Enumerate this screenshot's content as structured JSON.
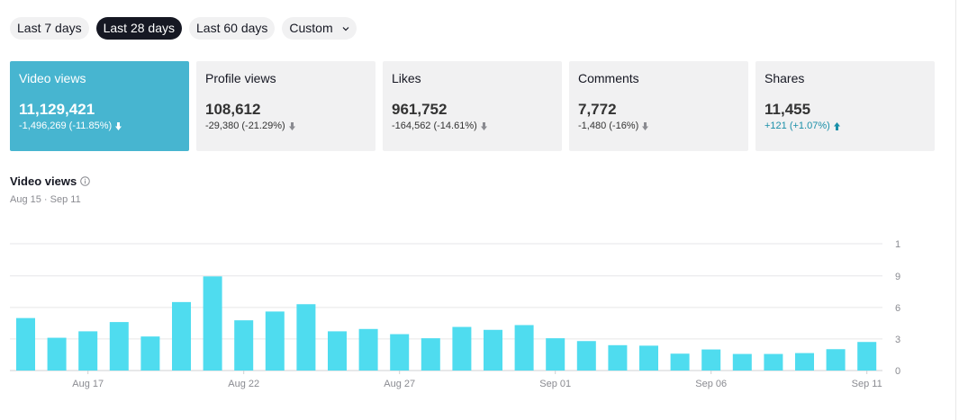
{
  "ranges": [
    {
      "label": "Last 7 days"
    },
    {
      "label": "Last 28 days"
    },
    {
      "label": "Last 60 days"
    },
    {
      "label": "Custom"
    }
  ],
  "cards": [
    {
      "title": "Video views",
      "value": "11,129,421",
      "delta": "-1,496,269 (-11.85%)",
      "trend": "down"
    },
    {
      "title": "Profile views",
      "value": "108,612",
      "delta": "-29,380 (-21.29%)",
      "trend": "down"
    },
    {
      "title": "Likes",
      "value": "961,752",
      "delta": "-164,562 (-14.61%)",
      "trend": "down"
    },
    {
      "title": "Comments",
      "value": "7,772",
      "delta": "-1,480 (-16%)",
      "trend": "down"
    },
    {
      "title": "Shares",
      "value": "11,455",
      "delta": "+121 (+1.07%)",
      "trend": "up"
    }
  ],
  "colors": {
    "accent": "#47b5d0",
    "bar": "#4fdcef",
    "dark": "#161823",
    "up": "#1a8fa8"
  },
  "chart_data": {
    "type": "bar",
    "title": "Video views",
    "subtitle": "Aug 15 · Sep 11",
    "categories": [
      "Aug 15",
      "Aug 16",
      "Aug 17",
      "Aug 18",
      "Aug 19",
      "Aug 20",
      "Aug 21",
      "Aug 22",
      "Aug 23",
      "Aug 24",
      "Aug 25",
      "Aug 26",
      "Aug 27",
      "Aug 28",
      "Aug 29",
      "Aug 30",
      "Aug 31",
      "Sep 01",
      "Sep 02",
      "Sep 03",
      "Sep 04",
      "Sep 05",
      "Sep 06",
      "Sep 07",
      "Sep 08",
      "Sep 09",
      "Sep 10",
      "Sep 11"
    ],
    "values": [
      538000,
      336000,
      402000,
      497000,
      349000,
      702000,
      965000,
      515000,
      605000,
      680000,
      402000,
      426000,
      373000,
      331000,
      447000,
      417000,
      466000,
      331000,
      302000,
      260000,
      255000,
      173000,
      216000,
      170000,
      170000,
      179000,
      219000,
      293000
    ],
    "ylim": [
      0,
      1300000
    ],
    "yticks": [
      {
        "value": 0,
        "label": "0"
      },
      {
        "value": 323300,
        "label": "323.3K"
      },
      {
        "value": 646700,
        "label": "646.7K"
      },
      {
        "value": 970000,
        "label": "970.0K"
      },
      {
        "value": 1300000,
        "label": "1.3M"
      }
    ],
    "xticks": [
      {
        "index": 2,
        "label": "Aug 17"
      },
      {
        "index": 7,
        "label": "Aug 22"
      },
      {
        "index": 12,
        "label": "Aug 27"
      },
      {
        "index": 17,
        "label": "Sep 01"
      },
      {
        "index": 22,
        "label": "Sep 06"
      },
      {
        "index": 27,
        "label": "Sep 11"
      }
    ]
  }
}
